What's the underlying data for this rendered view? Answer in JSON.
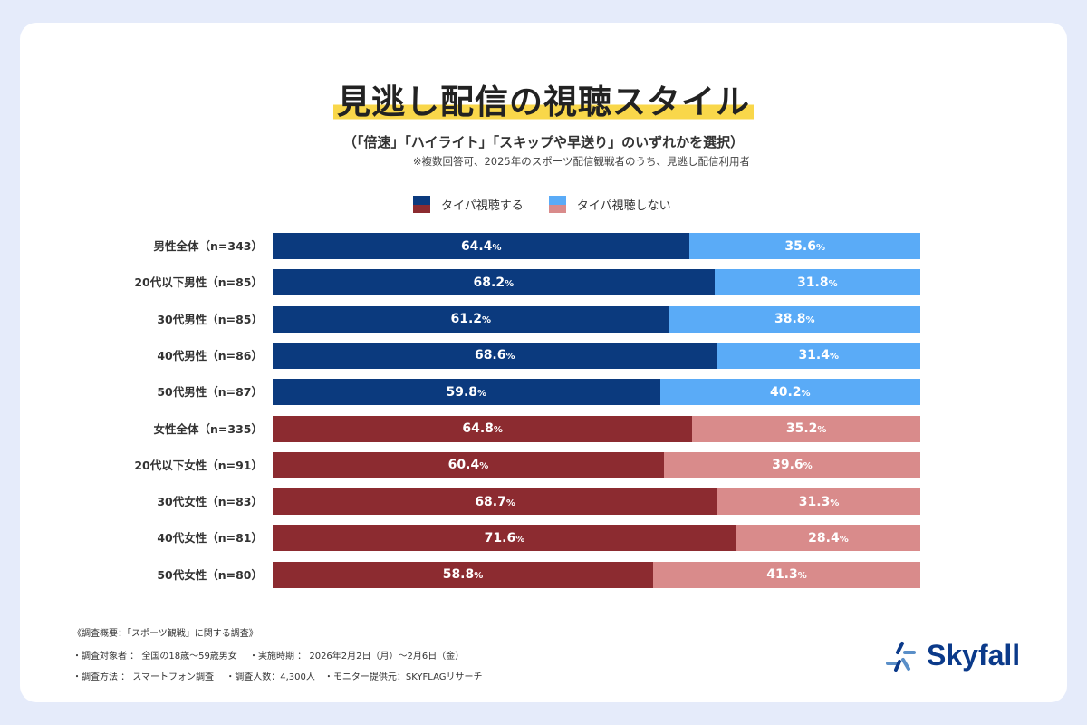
{
  "title": "見逃し配信の視聴スタイル",
  "subtitle": "（「倍速」「ハイライト」「スキップや早送り」のいずれかを選択）",
  "note": "※複数回答可、2025年のスポーツ配信観戦者のうち、見逃し配信利用者",
  "colors": {
    "male_yes": "#0b3a7e",
    "male_no": "#5aabf7",
    "female_yes": "#8c2b30",
    "female_no": "#d98b8b"
  },
  "chart_data": {
    "type": "bar",
    "orientation": "horizontal",
    "stacked": true,
    "legend": "top",
    "title": "見逃し配信の視聴スタイル",
    "categories": [
      "男性全体（n=343）",
      "20代以下男性（n=85）",
      "30代男性（n=85）",
      "40代男性（n=86）",
      "50代男性（n=87）",
      "女性全体（n=335）",
      "20代以下女性（n=91）",
      "30代女性（n=83）",
      "40代女性（n=81）",
      "50代女性（n=80）"
    ],
    "series": [
      {
        "name": "タイパ視聴する",
        "values": [
          64.4,
          68.2,
          61.2,
          68.6,
          59.8,
          64.8,
          60.4,
          68.7,
          71.6,
          58.8
        ]
      },
      {
        "name": "タイパ視聴しない",
        "values": [
          35.6,
          31.8,
          38.8,
          31.4,
          40.2,
          35.2,
          39.6,
          31.3,
          28.4,
          41.3
        ]
      }
    ],
    "unit": "%"
  },
  "footer": [
    "《調査概要：「スポーツ観戦」に関する調査》",
    "・調査対象者 ： 全国の18歳～59歳男女　 ・実施時期 ： 2026年2月2日（月）～2月6日（金）",
    "・調査方法 ： スマートフォン調査　 ・調査人数：4,300人　・モニター提供元：SKYFLAGリサーチ"
  ],
  "logo": "Skyfall"
}
